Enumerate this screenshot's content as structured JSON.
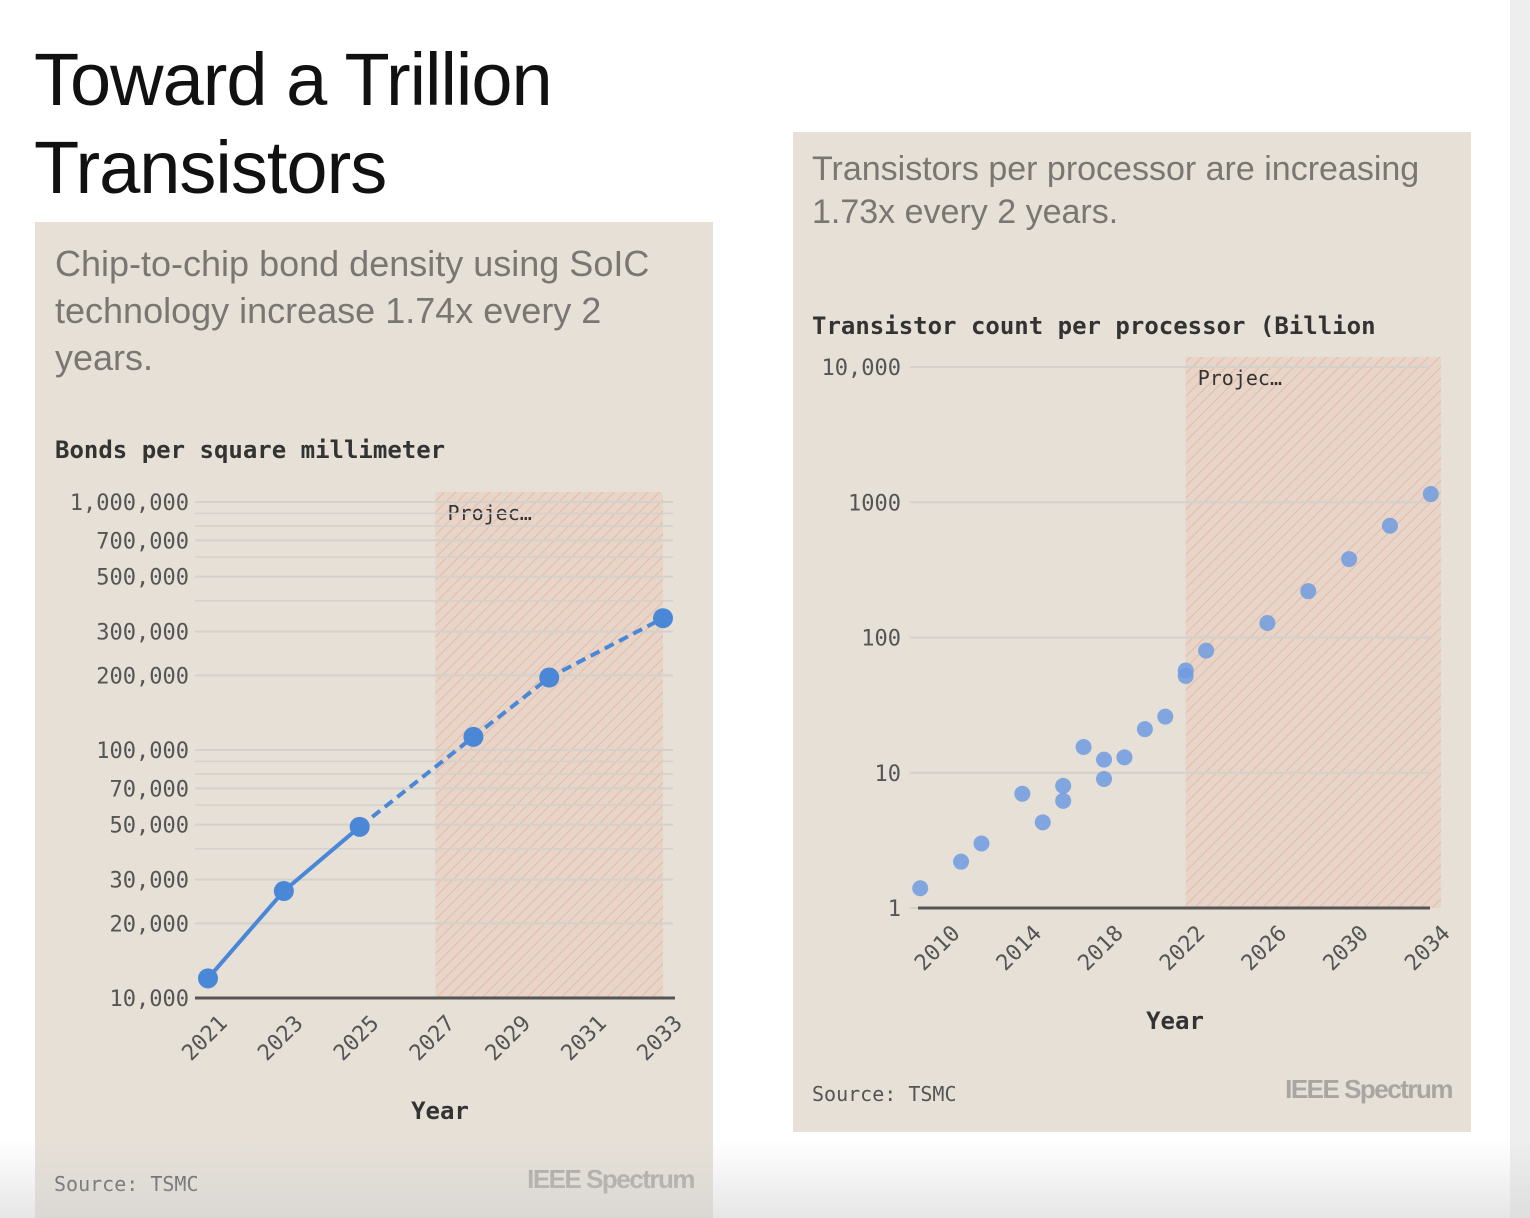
{
  "page": {
    "title_line1": "Toward a Trillion",
    "title_line2": "Transistors"
  },
  "colors": {
    "panel_bg": "#e6e0d7",
    "series": "#4a87d6",
    "scatter": "#6e9be0",
    "projection": "#e8a487",
    "grid": "#d4d0cb",
    "axis": "#555555"
  },
  "left": {
    "subtitle": "Chip-to-chip bond density using SoIC technology increase 1.74x every 2 years.",
    "source": "Source: TSMC",
    "brand": "IEEE Spectrum",
    "chart_title": "Bonds per square millimeter"
  },
  "right": {
    "subtitle": "Transistors per processor are increasing 1.73x every 2 years.",
    "source": "Source: TSMC",
    "brand": "IEEE Spectrum",
    "chart_title": "Transistor count per processor (Billion"
  },
  "chart_data": [
    {
      "type": "line",
      "title": "Bonds per square millimeter",
      "xlabel": "Year",
      "ylabel": "",
      "yscale": "log",
      "ylim": [
        10000,
        1000000
      ],
      "xlim": [
        2021,
        2033
      ],
      "x_ticks": [
        "2021",
        "2023",
        "2025",
        "2027",
        "2029",
        "2031",
        "2033"
      ],
      "y_ticks": [
        {
          "value": 10000,
          "label": "10,000"
        },
        {
          "value": 20000,
          "label": "20,000"
        },
        {
          "value": 30000,
          "label": "30,000"
        },
        {
          "value": 50000,
          "label": "50,000"
        },
        {
          "value": 70000,
          "label": "70,000"
        },
        {
          "value": 100000,
          "label": "100,000"
        },
        {
          "value": 200000,
          "label": "200,000"
        },
        {
          "value": 300000,
          "label": "300,000"
        },
        {
          "value": 500000,
          "label": "500,000"
        },
        {
          "value": 700000,
          "label": "700,000"
        },
        {
          "value": 1000000,
          "label": "1,000,000"
        }
      ],
      "projection": {
        "from": 2027,
        "to": 2033,
        "label": "Projec…"
      },
      "series": [
        {
          "style": "solid",
          "points": [
            [
              2021,
              12000
            ],
            [
              2023,
              27000
            ],
            [
              2025,
              49000
            ]
          ]
        },
        {
          "style": "dashed",
          "points": [
            [
              2025,
              49000
            ],
            [
              2028,
              113000
            ],
            [
              2030,
              196000
            ],
            [
              2033,
              340000
            ]
          ]
        }
      ],
      "grid": true
    },
    {
      "type": "scatter",
      "title": "Transistor count per processor (Billion",
      "xlabel": "Year",
      "ylabel": "",
      "yscale": "log",
      "ylim": [
        1,
        10000
      ],
      "xlim": [
        2008.5,
        2034.5
      ],
      "x_ticks": [
        "2010",
        "2014",
        "2018",
        "2022",
        "2026",
        "2030",
        "2034"
      ],
      "y_ticks": [
        {
          "value": 1,
          "label": "1"
        },
        {
          "value": 10,
          "label": "10"
        },
        {
          "value": 100,
          "label": "100"
        },
        {
          "value": 1000,
          "label": "1000"
        },
        {
          "value": 10000,
          "label": "10,000"
        }
      ],
      "projection": {
        "from": 2022,
        "to": 2034.5,
        "label": "Projec…"
      },
      "points": [
        [
          2009,
          1.4
        ],
        [
          2011,
          2.2
        ],
        [
          2012,
          3.0
        ],
        [
          2014,
          7.0
        ],
        [
          2015,
          4.3
        ],
        [
          2016,
          8.0
        ],
        [
          2016,
          6.2
        ],
        [
          2017,
          15.5
        ],
        [
          2018,
          12.5
        ],
        [
          2018,
          9.0
        ],
        [
          2019,
          13.0
        ],
        [
          2020,
          21.0
        ],
        [
          2021,
          26.0
        ],
        [
          2022,
          52.0
        ],
        [
          2022,
          57.0
        ],
        [
          2023,
          80.0
        ],
        [
          2026,
          128.0
        ],
        [
          2028,
          220.0
        ],
        [
          2030,
          380.0
        ],
        [
          2032,
          670.0
        ],
        [
          2034,
          1150.0
        ]
      ],
      "grid": true
    }
  ]
}
